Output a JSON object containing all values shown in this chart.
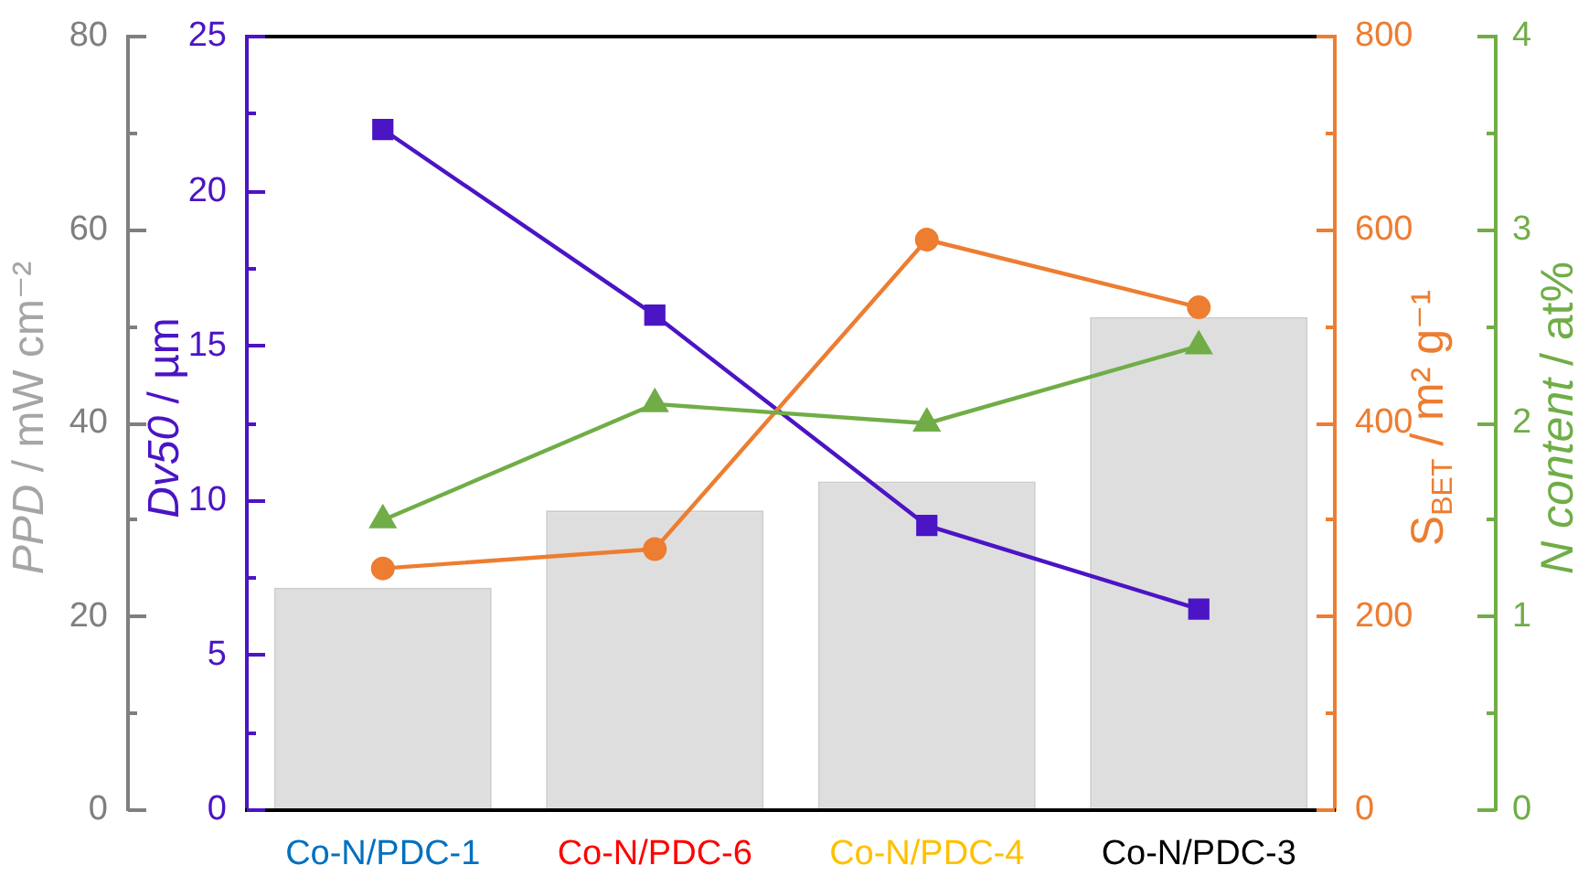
{
  "chart_data": [
    {
      "type": "bar",
      "categories": [
        "Co-N/PDC-1",
        "Co-N/PDC-6",
        "Co-N/PDC-4",
        "Co-N/PDC-3"
      ],
      "series": [
        {
          "color": "#dedede",
          "values": [
            23,
            31,
            34,
            51
          ]
        },
        {
          "type": "line",
          "color": "#4b14c4",
          "values": [
            22,
            16,
            9.2,
            6.5
          ],
          "axis": "y2",
          "marker": "square"
        },
        {
          "type": "line",
          "color": "#ed7d31",
          "values": [
            250,
            270,
            590,
            520
          ],
          "axis": "y3",
          "marker": "circle"
        }
      ],
      "ylabel": "PPD / mW cm⁻²",
      "ylim": [
        0,
        80
      ],
      "yticks": [
        0,
        {
          "value": 10,
          "label": null
        },
        20,
        {
          "value": 30,
          "label": null
        },
        40,
        {
          "value": 50,
          "label": null
        },
        60,
        {
          "value": 70,
          "label": null
        },
        80
      ],
      "y2label": "Dv50 / µm",
      "y2lim": [
        0,
        25
      ],
      "y2ticks": [
        0,
        {
          "value": 2.5,
          "label": null
        },
        5,
        {
          "value": 7.5,
          "label": null
        },
        10,
        {
          "value": 12.5,
          "label": null
        },
        15,
        {
          "value": 17.5,
          "label": null
        },
        20,
        {
          "value": 22.5,
          "label": null
        },
        25
      ],
      "y3label": "S$_{BET}$ / m² g⁻¹",
      "y3lim": [
        0,
        800
      ],
      "y3ticks": [
        0,
        {
          "value": 100,
          "label": null
        },
        200,
        {
          "value": 300,
          "label": null
        },
        400,
        {
          "value": 500,
          "label": null
        },
        600,
        {
          "value": 700,
          "label": null
        },
        800
      ],
      "grid": false,
      "legend": false
    },
    {
      "type": "line",
      "categories": [
        null,
        null,
        null,
        null
      ],
      "series": [
        {
          "color": "#70ad47",
          "values": [
            1.5,
            2.1,
            2.0,
            2.4
          ],
          "marker": "triangle"
        }
      ],
      "ylabel": "N content / at%",
      "ylim": [
        0,
        4
      ],
      "yticks": [
        0,
        {
          "value": 0.5,
          "label": null
        },
        1,
        {
          "value": 1.5,
          "label": null
        },
        2,
        {
          "value": 2.5,
          "label": null
        },
        3,
        {
          "value": 3.5,
          "label": null
        },
        4
      ],
      "tick_labels": "y",
      "grid": false,
      "legend": false
    }
  ]
}
